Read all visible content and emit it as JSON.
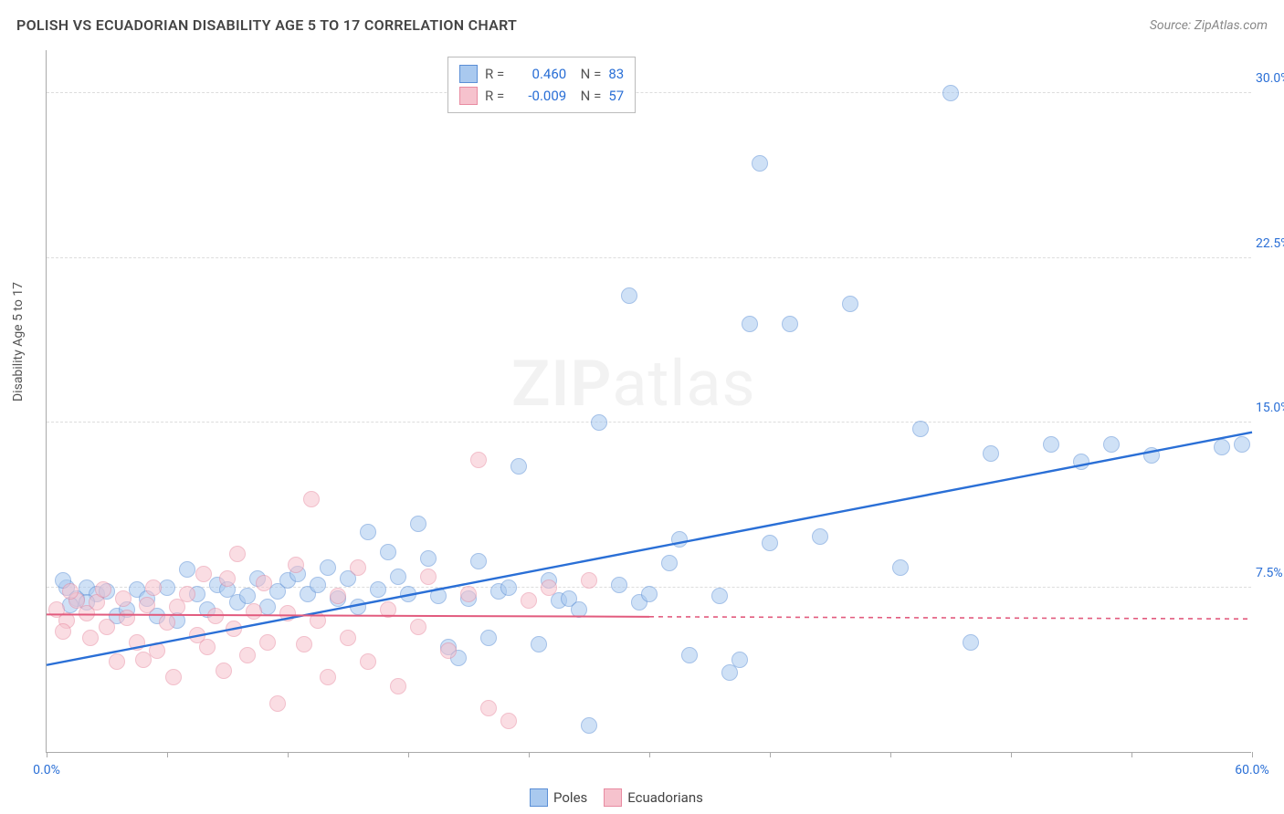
{
  "title": "POLISH VS ECUADORIAN DISABILITY AGE 5 TO 17 CORRELATION CHART",
  "source": "Source: ZipAtlas.com",
  "y_axis_label": "Disability Age 5 to 17",
  "watermark": {
    "bold": "ZIP",
    "light": "atlas"
  },
  "chart": {
    "type": "scatter",
    "xlim": [
      0,
      60
    ],
    "ylim": [
      0,
      32
    ],
    "x_ticks": [
      0,
      6,
      12,
      18,
      24,
      30,
      36,
      42,
      48,
      54,
      60
    ],
    "x_tick_labels": {
      "0": "0.0%",
      "60": "60.0%"
    },
    "y_ticks": [
      7.5,
      15.0,
      22.5,
      30.0
    ],
    "y_tick_labels": [
      "7.5%",
      "15.0%",
      "22.5%",
      "30.0%"
    ],
    "background_color": "#ffffff",
    "grid_color": "#dddddd",
    "axis_color": "#aaaaaa",
    "marker_radius": 9,
    "marker_opacity": 0.55,
    "series": [
      {
        "name": "Poles",
        "color_fill": "#a9c9ef",
        "color_stroke": "#5b8fd6",
        "r": "0.460",
        "n": "83",
        "trend": {
          "x0": 0,
          "y0": 4.0,
          "x1": 60,
          "y1": 14.6,
          "stroke": "#2a6fd6",
          "width": 2.4
        },
        "points": [
          [
            1.0,
            7.5
          ],
          [
            1.5,
            7.0
          ],
          [
            1.2,
            6.7
          ],
          [
            0.8,
            7.8
          ],
          [
            2.0,
            7.5
          ],
          [
            2.5,
            7.2
          ],
          [
            2.0,
            6.8
          ],
          [
            3.0,
            7.3
          ],
          [
            3.5,
            6.2
          ],
          [
            4.0,
            6.5
          ],
          [
            4.5,
            7.4
          ],
          [
            5.0,
            7.0
          ],
          [
            5.5,
            6.2
          ],
          [
            6.0,
            7.5
          ],
          [
            6.5,
            6.0
          ],
          [
            7.0,
            8.3
          ],
          [
            7.5,
            7.2
          ],
          [
            8.0,
            6.5
          ],
          [
            8.5,
            7.6
          ],
          [
            9.0,
            7.4
          ],
          [
            9.5,
            6.8
          ],
          [
            10.0,
            7.1
          ],
          [
            10.5,
            7.9
          ],
          [
            11.0,
            6.6
          ],
          [
            11.5,
            7.3
          ],
          [
            12.0,
            7.8
          ],
          [
            12.5,
            8.1
          ],
          [
            13.0,
            7.2
          ],
          [
            13.5,
            7.6
          ],
          [
            14.0,
            8.4
          ],
          [
            14.5,
            7.0
          ],
          [
            15.0,
            7.9
          ],
          [
            15.5,
            6.6
          ],
          [
            16.0,
            10.0
          ],
          [
            16.5,
            7.4
          ],
          [
            17.0,
            9.1
          ],
          [
            17.5,
            8.0
          ],
          [
            18.0,
            7.2
          ],
          [
            18.5,
            10.4
          ],
          [
            19.0,
            8.8
          ],
          [
            19.5,
            7.1
          ],
          [
            20.0,
            4.8
          ],
          [
            20.5,
            4.3
          ],
          [
            21.0,
            7.0
          ],
          [
            21.5,
            8.7
          ],
          [
            22.0,
            5.2
          ],
          [
            22.5,
            7.3
          ],
          [
            23.0,
            7.5
          ],
          [
            23.5,
            13.0
          ],
          [
            24.5,
            4.9
          ],
          [
            25.0,
            7.8
          ],
          [
            25.5,
            6.9
          ],
          [
            26.0,
            7.0
          ],
          [
            26.5,
            6.5
          ],
          [
            27.0,
            1.2
          ],
          [
            27.5,
            15.0
          ],
          [
            28.5,
            7.6
          ],
          [
            29.0,
            20.8
          ],
          [
            29.5,
            6.8
          ],
          [
            30.0,
            7.2
          ],
          [
            31.0,
            8.6
          ],
          [
            31.5,
            9.7
          ],
          [
            32.0,
            4.4
          ],
          [
            33.5,
            7.1
          ],
          [
            34.0,
            3.6
          ],
          [
            34.5,
            4.2
          ],
          [
            35.0,
            19.5
          ],
          [
            35.5,
            26.8
          ],
          [
            36.0,
            9.5
          ],
          [
            37.0,
            19.5
          ],
          [
            38.5,
            9.8
          ],
          [
            40.0,
            20.4
          ],
          [
            42.5,
            8.4
          ],
          [
            43.5,
            14.7
          ],
          [
            45.0,
            30.0
          ],
          [
            46.0,
            5.0
          ],
          [
            47.0,
            13.6
          ],
          [
            50.0,
            14.0
          ],
          [
            51.5,
            13.2
          ],
          [
            53.0,
            14.0
          ],
          [
            55.0,
            13.5
          ],
          [
            58.5,
            13.9
          ],
          [
            59.5,
            14.0
          ]
        ]
      },
      {
        "name": "Ecuadorians",
        "color_fill": "#f6c2cd",
        "color_stroke": "#e88ba1",
        "r": "-0.009",
        "n": "57",
        "trend": {
          "x0": 0,
          "y0": 6.3,
          "x1": 30,
          "y1": 6.2,
          "stroke": "#e25b7e",
          "width": 2.0,
          "dash_after_x": 30,
          "dash_to_x": 60
        },
        "points": [
          [
            0.5,
            6.5
          ],
          [
            1.0,
            6.0
          ],
          [
            1.5,
            6.9
          ],
          [
            1.2,
            7.3
          ],
          [
            0.8,
            5.5
          ],
          [
            2.0,
            6.3
          ],
          [
            2.2,
            5.2
          ],
          [
            2.5,
            6.8
          ],
          [
            2.8,
            7.4
          ],
          [
            3.0,
            5.7
          ],
          [
            3.5,
            4.1
          ],
          [
            3.8,
            7.0
          ],
          [
            4.0,
            6.1
          ],
          [
            4.5,
            5.0
          ],
          [
            4.8,
            4.2
          ],
          [
            5.0,
            6.7
          ],
          [
            5.3,
            7.5
          ],
          [
            5.5,
            4.6
          ],
          [
            6.0,
            5.9
          ],
          [
            6.3,
            3.4
          ],
          [
            6.5,
            6.6
          ],
          [
            7.0,
            7.2
          ],
          [
            7.5,
            5.3
          ],
          [
            7.8,
            8.1
          ],
          [
            8.0,
            4.8
          ],
          [
            8.4,
            6.2
          ],
          [
            8.8,
            3.7
          ],
          [
            9.0,
            7.9
          ],
          [
            9.3,
            5.6
          ],
          [
            9.5,
            9.0
          ],
          [
            10.0,
            4.4
          ],
          [
            10.3,
            6.4
          ],
          [
            10.8,
            7.7
          ],
          [
            11.0,
            5.0
          ],
          [
            11.5,
            2.2
          ],
          [
            12.0,
            6.3
          ],
          [
            12.4,
            8.5
          ],
          [
            12.8,
            4.9
          ],
          [
            13.2,
            11.5
          ],
          [
            13.5,
            6.0
          ],
          [
            14.0,
            3.4
          ],
          [
            14.5,
            7.1
          ],
          [
            15.0,
            5.2
          ],
          [
            15.5,
            8.4
          ],
          [
            16.0,
            4.1
          ],
          [
            17.0,
            6.5
          ],
          [
            17.5,
            3.0
          ],
          [
            18.5,
            5.7
          ],
          [
            19.0,
            8.0
          ],
          [
            20.0,
            4.6
          ],
          [
            21.0,
            7.2
          ],
          [
            21.5,
            13.3
          ],
          [
            22.0,
            2.0
          ],
          [
            23.0,
            1.4
          ],
          [
            24.0,
            6.9
          ],
          [
            25.0,
            7.5
          ],
          [
            27.0,
            7.8
          ]
        ]
      }
    ],
    "stat_legend": {
      "label_color": "#555555",
      "value_color": "#2a6fd6"
    },
    "bottom_legend_labels": [
      "Poles",
      "Ecuadorians"
    ]
  }
}
